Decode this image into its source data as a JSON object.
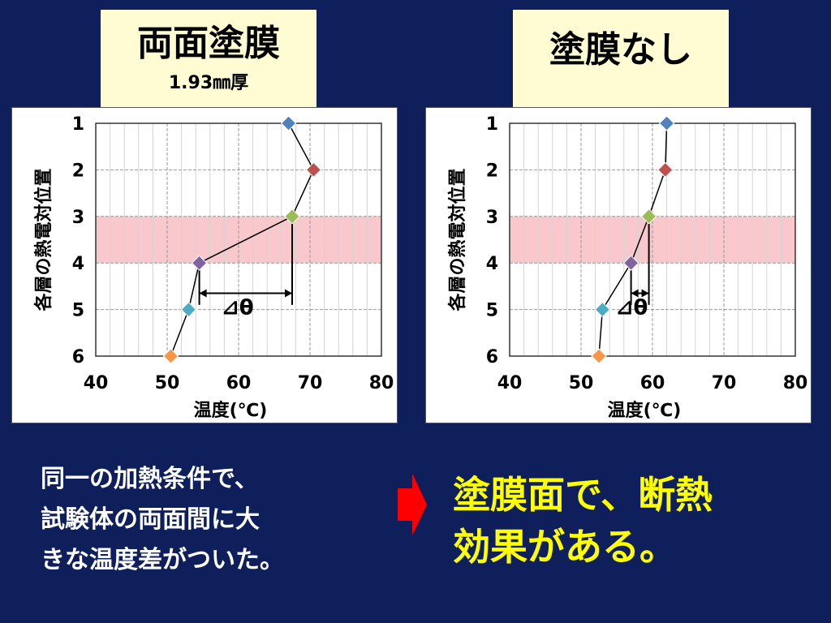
{
  "titles": {
    "left": {
      "main": "両面塗膜",
      "sub": "1.93㎜厚"
    },
    "right": {
      "main": "塗膜なし"
    }
  },
  "caption_lines": [
    "同一の加熱条件で、",
    "試験体の両面間に大",
    "きな温度差がついた。"
  ],
  "conclusion_lines": [
    "塗膜面で、断熱",
    "効果がある。"
  ],
  "colors": {
    "background": "#0f1f5c",
    "title_box": "#fffcd4",
    "conclusion_text": "#ffff00",
    "arrow": "#ff0000",
    "band": "#f8c8cc",
    "line": "#000000"
  },
  "chart_data": [
    {
      "type": "scatter",
      "title": "",
      "xlabel": "温度(℃)",
      "ylabel": "各層の熱電対位置",
      "xlim": [
        40,
        80
      ],
      "xticks": [
        40,
        50,
        60,
        70,
        80
      ],
      "ylim": [
        1,
        6
      ],
      "yticks": [
        1,
        2,
        3,
        4,
        5,
        6
      ],
      "grid": true,
      "y_reversed": true,
      "highlight_band": [
        3,
        4
      ],
      "points": [
        {
          "x": 67,
          "y": 1,
          "color": "#4f81bd"
        },
        {
          "x": 70.5,
          "y": 2,
          "color": "#c0504d"
        },
        {
          "x": 67.5,
          "y": 3,
          "color": "#9bbb59"
        },
        {
          "x": 54.5,
          "y": 4,
          "color": "#8064a2"
        },
        {
          "x": 53,
          "y": 5,
          "color": "#4bacc6"
        },
        {
          "x": 50.5,
          "y": 6,
          "color": "#f79646"
        }
      ],
      "annotation": {
        "label": "⊿θ",
        "from_x": 54.5,
        "to_x": 67.5
      }
    },
    {
      "type": "scatter",
      "title": "",
      "xlabel": "温度(℃)",
      "ylabel": "各層の熱電対位置",
      "xlim": [
        40,
        80
      ],
      "xticks": [
        40,
        50,
        60,
        70,
        80
      ],
      "ylim": [
        1,
        6
      ],
      "yticks": [
        1,
        2,
        3,
        4,
        5,
        6
      ],
      "grid": true,
      "y_reversed": true,
      "highlight_band": [
        3,
        4
      ],
      "points": [
        {
          "x": 62,
          "y": 1,
          "color": "#4f81bd"
        },
        {
          "x": 61.8,
          "y": 2,
          "color": "#c0504d"
        },
        {
          "x": 59.5,
          "y": 3,
          "color": "#9bbb59"
        },
        {
          "x": 57,
          "y": 4,
          "color": "#8064a2"
        },
        {
          "x": 53,
          "y": 5,
          "color": "#4bacc6"
        },
        {
          "x": 52.5,
          "y": 6,
          "color": "#f79646"
        }
      ],
      "annotation": {
        "label": "⊿θ",
        "from_x": 57,
        "to_x": 59.5
      }
    }
  ]
}
